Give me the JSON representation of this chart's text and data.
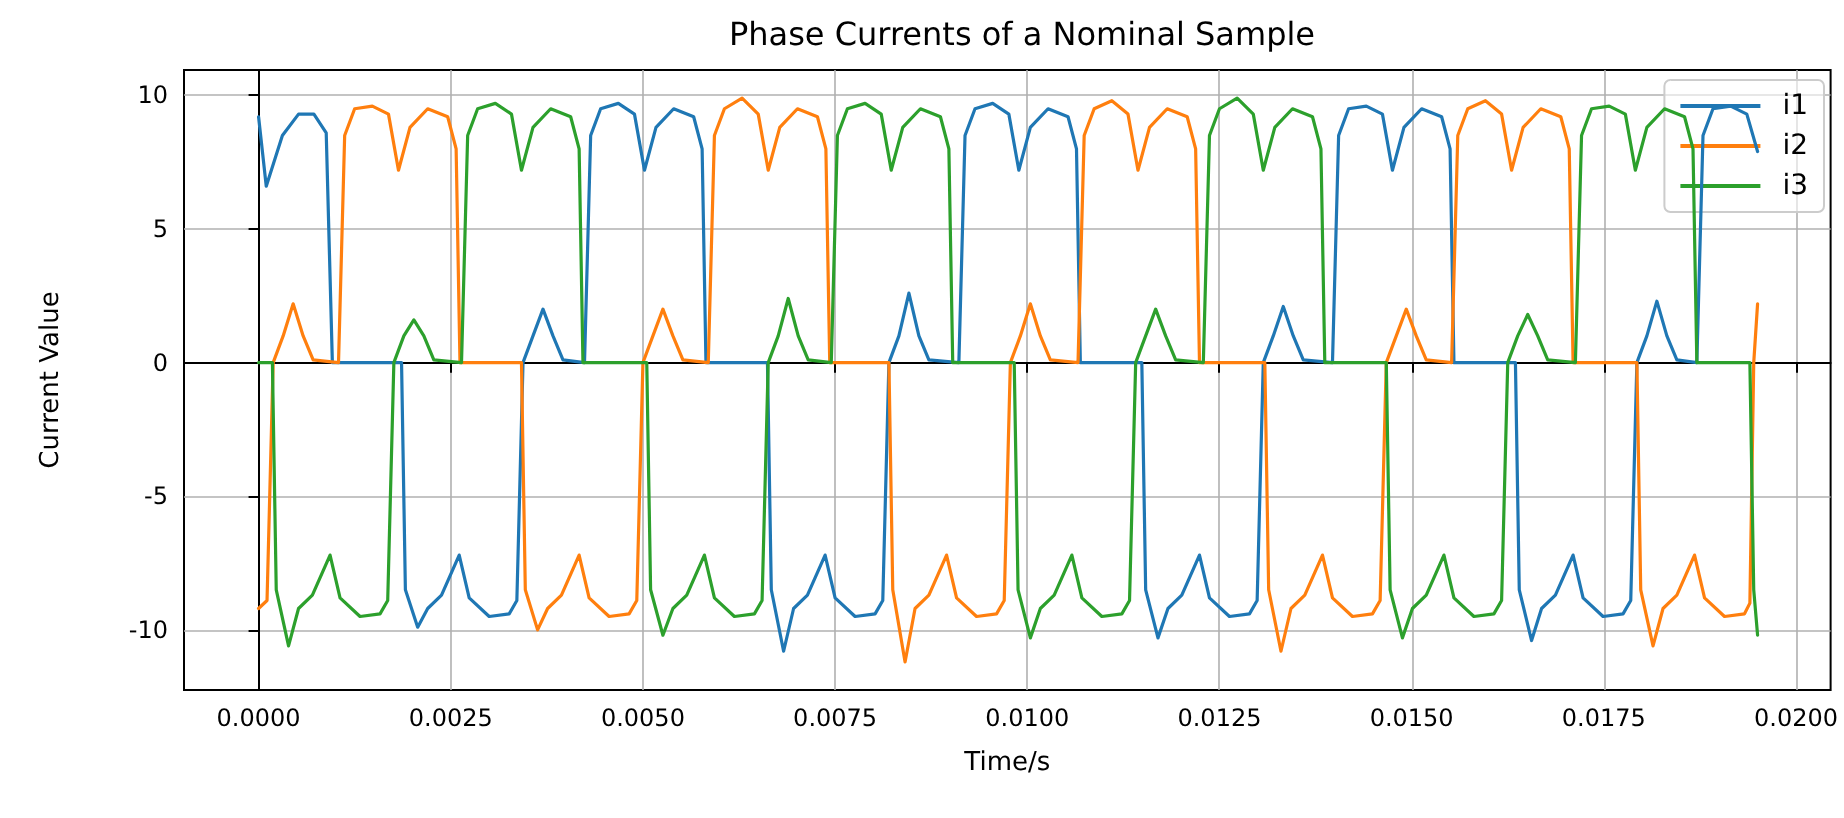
{
  "chart_data": {
    "type": "line",
    "title": "Phase Currents of a Nominal Sample",
    "xlabel": "Time/s",
    "ylabel": "Current Value",
    "xlim": [
      -0.00097,
      0.02045
    ],
    "ylim": [
      -12.25,
      10.95
    ],
    "xticks": [
      {
        "value": 0,
        "label": "0.0000"
      },
      {
        "value": 0.0025,
        "label": "0.0025"
      },
      {
        "value": 0.005,
        "label": "0.0050"
      },
      {
        "value": 0.0075,
        "label": "0.0075"
      },
      {
        "value": 0.01,
        "label": "0.0100"
      },
      {
        "value": 0.0125,
        "label": "0.0125"
      },
      {
        "value": 0.015,
        "label": "0.0150"
      },
      {
        "value": 0.0175,
        "label": "0.0175"
      },
      {
        "value": 0.02,
        "label": "0.0200"
      }
    ],
    "yticks": [
      -10,
      -5,
      0,
      5,
      10
    ],
    "grid": true,
    "legend": "top right",
    "marker": "none",
    "line_style": "solid",
    "series": [
      {
        "name": "i1",
        "color": "#1f77b4",
        "x": [
          0,
          0.0001,
          0.00031,
          0.00052,
          0.00072,
          0.00088,
          0.00096,
          0.00186,
          0.00191,
          0.00207,
          0.0022,
          0.00238,
          0.00261,
          0.00274,
          0.003,
          0.00326,
          0.00336,
          0.00344,
          0.00357,
          0.0037,
          0.00383,
          0.00396,
          0.00424,
          0.00432,
          0.00445,
          0.00468,
          0.00489,
          0.00502,
          0.00517,
          0.0054,
          0.00566,
          0.00577,
          0.00582,
          0.00662,
          0.00667,
          0.00683,
          0.00696,
          0.00714,
          0.00737,
          0.0075,
          0.00776,
          0.00802,
          0.00812,
          0.0082,
          0.00833,
          0.00846,
          0.00859,
          0.00872,
          0.00911,
          0.00919,
          0.00932,
          0.00955,
          0.00976,
          0.00989,
          0.01004,
          0.01027,
          0.01053,
          0.01064,
          0.01069,
          0.01149,
          0.01154,
          0.0117,
          0.01183,
          0.01201,
          0.01224,
          0.01237,
          0.01263,
          0.01289,
          0.01299,
          0.01307,
          0.0132,
          0.01333,
          0.01346,
          0.01359,
          0.01397,
          0.01405,
          0.01418,
          0.01441,
          0.01462,
          0.01475,
          0.0149,
          0.01513,
          0.01539,
          0.0155,
          0.01555,
          0.01635,
          0.0164,
          0.01656,
          0.01669,
          0.01687,
          0.0171,
          0.01723,
          0.01749,
          0.01775,
          0.01785,
          0.01793,
          0.01806,
          0.01819,
          0.01832,
          0.01845,
          0.01871,
          0.01879,
          0.01892,
          0.01915,
          0.01936,
          0.0195
        ],
        "values": [
          9.2,
          6.6,
          8.5,
          9.3,
          9.3,
          8.6,
          0,
          0,
          -8.5,
          -9.9,
          -9.2,
          -8.7,
          -7.2,
          -8.8,
          -9.5,
          -9.4,
          -8.9,
          0,
          1.0,
          2.0,
          1.0,
          0.1,
          0,
          8.5,
          9.5,
          9.7,
          9.3,
          7.2,
          8.8,
          9.5,
          9.2,
          8.0,
          0,
          0,
          -8.5,
          -10.8,
          -9.2,
          -8.7,
          -7.2,
          -8.8,
          -9.5,
          -9.4,
          -8.9,
          0,
          1.0,
          2.6,
          1.0,
          0.1,
          0,
          8.5,
          9.5,
          9.7,
          9.3,
          7.2,
          8.8,
          9.5,
          9.2,
          8.0,
          0,
          0,
          -8.5,
          -10.3,
          -9.2,
          -8.7,
          -7.2,
          -8.8,
          -9.5,
          -9.4,
          -8.9,
          0,
          1.0,
          2.1,
          1.0,
          0.1,
          0,
          8.5,
          9.5,
          9.6,
          9.3,
          7.2,
          8.8,
          9.5,
          9.2,
          8.0,
          0,
          0,
          -8.5,
          -10.4,
          -9.2,
          -8.7,
          -7.2,
          -8.8,
          -9.5,
          -9.4,
          -8.9,
          0,
          1.0,
          2.3,
          1.0,
          0.1,
          0,
          8.5,
          9.5,
          9.6,
          9.3,
          7.9
        ]
      },
      {
        "name": "i2",
        "color": "#ff7f0e",
        "x": [
          0,
          0.00011,
          0.00019,
          0.00032,
          0.00045,
          0.00058,
          0.00071,
          0.00104,
          0.00112,
          0.00125,
          0.00148,
          0.00169,
          0.00182,
          0.00197,
          0.0022,
          0.00246,
          0.00257,
          0.00262,
          0.00342,
          0.00347,
          0.00363,
          0.00376,
          0.00394,
          0.00417,
          0.0043,
          0.00456,
          0.00482,
          0.00492,
          0.005,
          0.00513,
          0.00526,
          0.00539,
          0.00552,
          0.00585,
          0.00593,
          0.00606,
          0.00629,
          0.0065,
          0.00663,
          0.00678,
          0.00701,
          0.00727,
          0.00738,
          0.00743,
          0.0082,
          0.00825,
          0.00841,
          0.00854,
          0.00872,
          0.00895,
          0.00908,
          0.00934,
          0.0096,
          0.0097,
          0.00978,
          0.00991,
          0.01004,
          0.01017,
          0.0103,
          0.01066,
          0.01074,
          0.01087,
          0.0111,
          0.01131,
          0.01144,
          0.01159,
          0.01182,
          0.01208,
          0.01219,
          0.01224,
          0.01309,
          0.01314,
          0.0133,
          0.01343,
          0.01361,
          0.01384,
          0.01397,
          0.01423,
          0.01449,
          0.01459,
          0.01467,
          0.0148,
          0.01493,
          0.01506,
          0.01519,
          0.01552,
          0.0156,
          0.01573,
          0.01596,
          0.01617,
          0.0163,
          0.01645,
          0.01668,
          0.01694,
          0.01705,
          0.0171,
          0.01793,
          0.01798,
          0.01814,
          0.01827,
          0.01845,
          0.01868,
          0.01881,
          0.01907,
          0.01933,
          0.0194,
          0.01945,
          0.0195
        ],
        "values": [
          -9.2,
          -8.9,
          0,
          1.0,
          2.2,
          1.0,
          0.1,
          0,
          8.5,
          9.5,
          9.6,
          9.3,
          7.2,
          8.8,
          9.5,
          9.2,
          8.0,
          0,
          0,
          -8.5,
          -10.0,
          -9.2,
          -8.7,
          -7.2,
          -8.8,
          -9.5,
          -9.4,
          -8.9,
          0,
          1.0,
          2.0,
          1.0,
          0.1,
          0,
          8.5,
          9.5,
          9.9,
          9.3,
          7.2,
          8.8,
          9.5,
          9.2,
          8.0,
          0,
          0,
          -8.5,
          -11.2,
          -9.2,
          -8.7,
          -7.2,
          -8.8,
          -9.5,
          -9.4,
          -8.9,
          0,
          1.0,
          2.2,
          1.0,
          0.1,
          0,
          8.5,
          9.5,
          9.8,
          9.3,
          7.2,
          8.8,
          9.5,
          9.2,
          8.0,
          0,
          0,
          -8.5,
          -10.8,
          -9.2,
          -8.7,
          -7.2,
          -8.8,
          -9.5,
          -9.4,
          -8.9,
          0,
          1.0,
          2.0,
          1.0,
          0.1,
          0,
          8.5,
          9.5,
          9.8,
          9.3,
          7.2,
          8.8,
          9.5,
          9.2,
          8.0,
          0,
          0,
          -8.5,
          -10.6,
          -9.2,
          -8.7,
          -7.2,
          -8.8,
          -9.5,
          -9.4,
          -9.0,
          0,
          2.2
        ]
      },
      {
        "name": "i3",
        "color": "#2ca02c",
        "x": [
          0,
          0.00018,
          0.00023,
          0.00039,
          0.00052,
          0.0007,
          0.00093,
          0.00106,
          0.00132,
          0.00158,
          0.00168,
          0.00176,
          0.00189,
          0.00202,
          0.00215,
          0.00228,
          0.00264,
          0.00272,
          0.00285,
          0.00308,
          0.00329,
          0.00342,
          0.00357,
          0.0038,
          0.00406,
          0.00417,
          0.00422,
          0.00505,
          0.0051,
          0.00526,
          0.00539,
          0.00557,
          0.0058,
          0.00593,
          0.00619,
          0.00645,
          0.00655,
          0.00663,
          0.00676,
          0.00689,
          0.00702,
          0.00715,
          0.00745,
          0.00753,
          0.00766,
          0.00789,
          0.0081,
          0.00823,
          0.00838,
          0.00861,
          0.00887,
          0.00898,
          0.00903,
          0.00983,
          0.00988,
          0.01004,
          0.01017,
          0.01035,
          0.01058,
          0.01071,
          0.01097,
          0.01123,
          0.01133,
          0.01141,
          0.01154,
          0.01167,
          0.0118,
          0.01193,
          0.01229,
          0.01237,
          0.0125,
          0.01273,
          0.01294,
          0.01307,
          0.01322,
          0.01345,
          0.01371,
          0.01382,
          0.01387,
          0.01467,
          0.01472,
          0.01488,
          0.01501,
          0.01519,
          0.01542,
          0.01555,
          0.01581,
          0.01607,
          0.01617,
          0.01625,
          0.01638,
          0.01651,
          0.01664,
          0.01677,
          0.01713,
          0.01721,
          0.01734,
          0.01757,
          0.01778,
          0.01791,
          0.01806,
          0.01829,
          0.01855,
          0.01866,
          0.01871,
          0.0194,
          0.01945,
          0.0195
        ],
        "values": [
          0,
          0,
          -8.5,
          -10.6,
          -9.2,
          -8.7,
          -7.2,
          -8.8,
          -9.5,
          -9.4,
          -8.9,
          0,
          1.0,
          1.6,
          1.0,
          0.1,
          0,
          8.5,
          9.5,
          9.7,
          9.3,
          7.2,
          8.8,
          9.5,
          9.2,
          8.0,
          0,
          0,
          -8.5,
          -10.2,
          -9.2,
          -8.7,
          -7.2,
          -8.8,
          -9.5,
          -9.4,
          -8.9,
          0,
          1.0,
          2.4,
          1.0,
          0.1,
          0,
          8.5,
          9.5,
          9.7,
          9.3,
          7.2,
          8.8,
          9.5,
          9.2,
          8.0,
          0,
          0,
          -8.5,
          -10.3,
          -9.2,
          -8.7,
          -7.2,
          -8.8,
          -9.5,
          -9.4,
          -8.9,
          0,
          1.0,
          2.0,
          1.0,
          0.1,
          0,
          8.5,
          9.5,
          9.9,
          9.3,
          7.2,
          8.8,
          9.5,
          9.2,
          8.0,
          0,
          0,
          -8.5,
          -10.3,
          -9.2,
          -8.7,
          -7.2,
          -8.8,
          -9.5,
          -9.4,
          -8.9,
          0,
          1.0,
          1.8,
          1.0,
          0.1,
          0,
          8.5,
          9.5,
          9.6,
          9.3,
          7.2,
          8.8,
          9.5,
          9.2,
          8.0,
          0,
          0,
          -8.5,
          -10.2
        ]
      }
    ]
  }
}
